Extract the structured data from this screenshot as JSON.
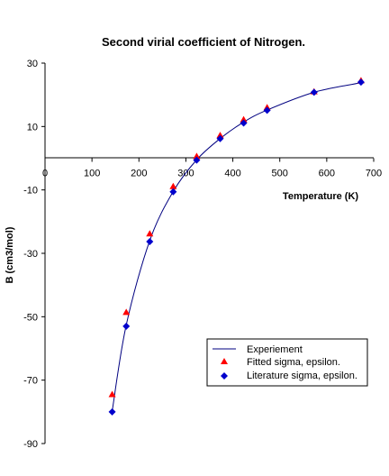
{
  "chart_data": {
    "type": "scatter",
    "title": "Second virial coefficient of Nitrogen.",
    "xlabel": "Temperature (K)",
    "ylabel": "B (cm3/mol)",
    "xlim": [
      0,
      700
    ],
    "ylim": [
      -90,
      30
    ],
    "x_ticks": [
      "0",
      "100",
      "200",
      "300",
      "400",
      "500",
      "600",
      "700"
    ],
    "y_ticks": [
      "30",
      "10",
      "-10",
      "-30",
      "-50",
      "-70",
      "-90"
    ],
    "grid": false,
    "legend_position": "lower-right",
    "series": [
      {
        "name": "Experiement",
        "kind": "line",
        "color": "#000080",
        "x": [
          143,
          173,
          223,
          273,
          323,
          373,
          423,
          473,
          573,
          673
        ],
        "y": [
          -79.8,
          -52.6,
          -26.0,
          -10.5,
          -0.5,
          6.2,
          11.4,
          15.2,
          20.8,
          23.8
        ]
      },
      {
        "name": "Fitted sigma, epsilon.",
        "kind": "marker",
        "marker": "triangle",
        "color": "#ff0000",
        "x": [
          143,
          173,
          223,
          273,
          323,
          373,
          423,
          473,
          573,
          673
        ],
        "y": [
          -74.5,
          -48.6,
          -23.8,
          -8.9,
          0.6,
          7.2,
          12.2,
          16.0,
          21.0,
          24.5
        ]
      },
      {
        "name": "Literature sigma, epsilon.",
        "kind": "marker",
        "marker": "diamond",
        "color": "#0000cc",
        "x": [
          143,
          173,
          223,
          273,
          323,
          373,
          423,
          473,
          573,
          673
        ],
        "y": [
          -80.0,
          -53.0,
          -26.3,
          -10.6,
          -0.6,
          6.2,
          11.1,
          15.1,
          20.8,
          24.0
        ]
      }
    ]
  }
}
